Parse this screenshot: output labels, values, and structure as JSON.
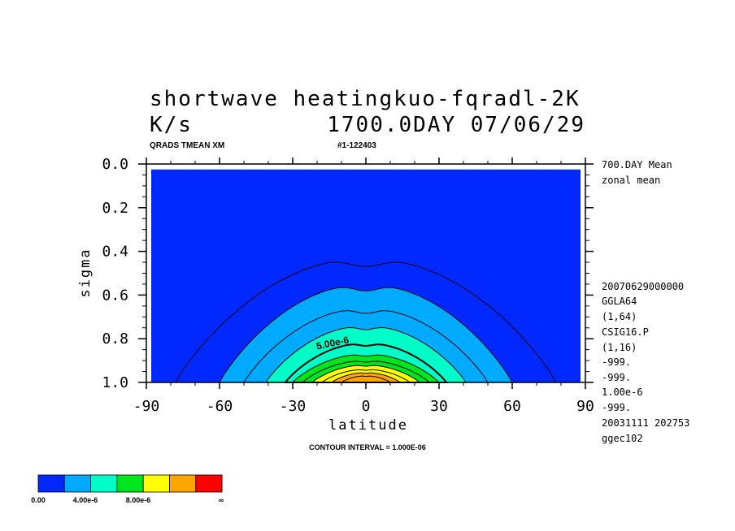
{
  "chart_data": {
    "type": "contour",
    "title": "shortwave heatingkuo-fqradl-2K",
    "subtitle_left": "K/s",
    "subtitle_right": "1700.0DAY 07/06/29",
    "header_left": "QRADS TMEAN XM",
    "header_right": "#1-122403",
    "xlabel": "latitude",
    "ylabel": "sigma",
    "xlim": [
      -90,
      90
    ],
    "ylim": [
      1.0,
      0.0
    ],
    "x_ticks": [
      "-90",
      "-60",
      "-30",
      "0",
      "30",
      "60",
      "90"
    ],
    "y_ticks": [
      "0.0",
      "0.2",
      "0.4",
      "0.6",
      "0.8",
      "1.0"
    ],
    "contour_interval_text": "CONTOUR INTERVAL = 1.000E-06",
    "contour_label": "5.00e-6",
    "levels": [
      {
        "value": 1e-06,
        "peak_sigma": 0.43,
        "edge_lat": 78
      },
      {
        "value": 2e-06,
        "peak_sigma": 0.55,
        "edge_lat": 60
      },
      {
        "value": 3e-06,
        "peak_sigma": 0.66,
        "edge_lat": 50
      },
      {
        "value": 4e-06,
        "peak_sigma": 0.74,
        "edge_lat": 41
      },
      {
        "value": 5e-06,
        "peak_sigma": 0.82,
        "edge_lat": 33
      },
      {
        "value": 6e-06,
        "peak_sigma": 0.87,
        "edge_lat": 30
      },
      {
        "value": 7e-06,
        "peak_sigma": 0.9,
        "edge_lat": 26
      },
      {
        "value": 8e-06,
        "peak_sigma": 0.92,
        "edge_lat": 22
      },
      {
        "value": 9e-06,
        "peak_sigma": 0.94,
        "edge_lat": 18
      },
      {
        "value": 1e-05,
        "peak_sigma": 0.955,
        "edge_lat": 14
      },
      {
        "value": 1.1e-05,
        "peak_sigma": 0.97,
        "edge_lat": 10
      }
    ],
    "fill_colors": [
      "#0028ff",
      "#00aaff",
      "#00ffc8",
      "#00e61e",
      "#ffff00",
      "#ffa500",
      "#ff0000"
    ],
    "colorbar_labels": [
      "0.00",
      "4.00e-6",
      "8.00e-6",
      "∞"
    ]
  },
  "side_info": [
    "700.DAY Mean",
    "zonal mean",
    "20070629000000",
    "GGLA64",
    "(1,64)",
    "CSIG16.P",
    "(1,16)",
    "-999.",
    "-999.",
    "1.00e-6",
    "-999.",
    "20031111 202753",
    "ggec102"
  ]
}
